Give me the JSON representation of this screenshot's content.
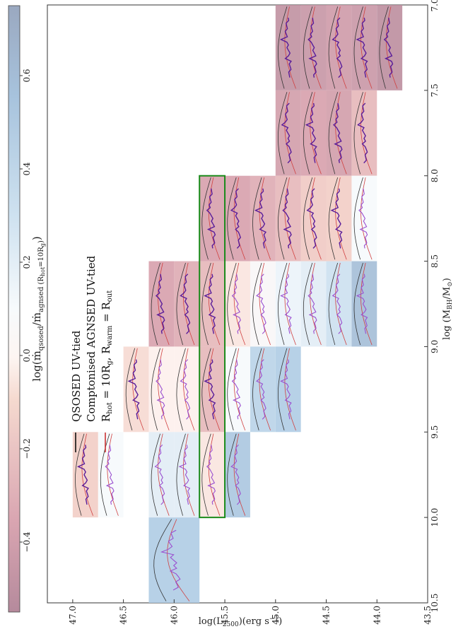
{
  "chart_data": {
    "type": "heatmap",
    "orientation": "rotated-90",
    "title": "",
    "xlabel": "log(M_BH/M_⊙)",
    "ylabel": "log(L_2500)(erg s^-1)",
    "colorbar_label": "log(ṁ_qsosed/ṁ_agnsed (R_hot=10R_g))",
    "xlim": [
      7.0,
      10.5
    ],
    "ylim": [
      43.5,
      47.25
    ],
    "clim": [
      -0.55,
      0.75
    ],
    "x_ticks": [
      "7.0",
      "7.5",
      "8.0",
      "8.5",
      "9.0",
      "9.5",
      "10.0",
      "10.5"
    ],
    "y_ticks": [
      "43.5",
      "44.0",
      "44.5",
      "45.0",
      "45.5",
      "46.0",
      "46.5",
      "47.0"
    ],
    "cbar_ticks": [
      "−0.4",
      "−0.2",
      "0.0",
      "0.2",
      "0.4",
      "0.6"
    ],
    "cbar_tick_values": [
      -0.4,
      -0.2,
      0.0,
      0.2,
      0.4,
      0.6
    ],
    "legend": [
      {
        "label": "QSOSED UV-tied",
        "color": "#111111"
      },
      {
        "label": "Comptonised AGNSED UV-tied",
        "color": "#111111"
      },
      {
        "label": "R_hot = 10R_g, R_warm = R_out",
        "color": "#cc3333"
      }
    ],
    "highlight": {
      "x_range": [
        8.0,
        10.0
      ],
      "y_range": [
        45.5,
        45.75
      ],
      "color": "#1a8a1a"
    },
    "bins": [
      {
        "mbh": [
          7.0,
          7.5
        ],
        "l": [
          43.75,
          44.0
        ],
        "v": -0.52
      },
      {
        "mbh": [
          7.0,
          7.5
        ],
        "l": [
          44.0,
          44.25
        ],
        "v": -0.46
      },
      {
        "mbh": [
          7.0,
          7.5
        ],
        "l": [
          44.25,
          44.5
        ],
        "v": -0.44
      },
      {
        "mbh": [
          7.0,
          7.5
        ],
        "l": [
          44.5,
          44.75
        ],
        "v": -0.47
      },
      {
        "mbh": [
          7.0,
          7.5
        ],
        "l": [
          44.75,
          45.0
        ],
        "v": -0.5
      },
      {
        "mbh": [
          7.5,
          8.0
        ],
        "l": [
          44.0,
          44.25
        ],
        "v": -0.3
      },
      {
        "mbh": [
          7.5,
          8.0
        ],
        "l": [
          44.25,
          44.5
        ],
        "v": -0.42
      },
      {
        "mbh": [
          7.5,
          8.0
        ],
        "l": [
          44.5,
          44.75
        ],
        "v": -0.4
      },
      {
        "mbh": [
          7.5,
          8.0
        ],
        "l": [
          44.75,
          45.0
        ],
        "v": -0.42
      },
      {
        "mbh": [
          8.0,
          8.5
        ],
        "l": [
          44.0,
          44.25
        ],
        "v": 0.05
      },
      {
        "mbh": [
          8.0,
          8.5
        ],
        "l": [
          44.25,
          44.5
        ],
        "v": -0.2
      },
      {
        "mbh": [
          8.0,
          8.5
        ],
        "l": [
          44.5,
          44.75
        ],
        "v": -0.22
      },
      {
        "mbh": [
          8.0,
          8.5
        ],
        "l": [
          44.75,
          45.0
        ],
        "v": -0.3
      },
      {
        "mbh": [
          8.0,
          8.5
        ],
        "l": [
          45.0,
          45.25
        ],
        "v": -0.35
      },
      {
        "mbh": [
          8.0,
          8.5
        ],
        "l": [
          45.25,
          45.5
        ],
        "v": -0.4
      },
      {
        "mbh": [
          8.0,
          8.5
        ],
        "l": [
          45.5,
          45.75
        ],
        "v": -0.4
      },
      {
        "mbh": [
          8.5,
          9.0
        ],
        "l": [
          44.0,
          44.25
        ],
        "v": 0.55
      },
      {
        "mbh": [
          8.5,
          9.0
        ],
        "l": [
          44.25,
          44.5
        ],
        "v": 0.25
      },
      {
        "mbh": [
          8.5,
          9.0
        ],
        "l": [
          44.5,
          44.75
        ],
        "v": 0.15
      },
      {
        "mbh": [
          8.5,
          9.0
        ],
        "l": [
          44.75,
          45.0
        ],
        "v": 0.1
      },
      {
        "mbh": [
          8.5,
          9.0
        ],
        "l": [
          45.0,
          45.25
        ],
        "v": 0.02
      },
      {
        "mbh": [
          8.5,
          9.0
        ],
        "l": [
          45.25,
          45.5
        ],
        "v": -0.1
      },
      {
        "mbh": [
          8.5,
          9.0
        ],
        "l": [
          45.5,
          45.75
        ],
        "v": -0.3
      },
      {
        "mbh": [
          8.5,
          9.0
        ],
        "l": [
          45.75,
          46.0
        ],
        "v": -0.35
      },
      {
        "mbh": [
          8.5,
          9.0
        ],
        "l": [
          46.0,
          46.25
        ],
        "v": -0.4
      },
      {
        "mbh": [
          9.0,
          9.5
        ],
        "l": [
          44.75,
          45.0
        ],
        "v": 0.4
      },
      {
        "mbh": [
          9.0,
          9.5
        ],
        "l": [
          45.0,
          45.25
        ],
        "v": 0.35
      },
      {
        "mbh": [
          9.0,
          9.5
        ],
        "l": [
          45.25,
          45.5
        ],
        "v": 0.05
      },
      {
        "mbh": [
          9.0,
          9.5
        ],
        "l": [
          45.5,
          45.75
        ],
        "v": -0.3
      },
      {
        "mbh": [
          9.0,
          9.5
        ],
        "l": [
          45.75,
          46.0
        ],
        "v": -0.05
      },
      {
        "mbh": [
          9.0,
          9.5
        ],
        "l": [
          46.0,
          46.25
        ],
        "v": -0.05
      },
      {
        "mbh": [
          9.0,
          9.5
        ],
        "l": [
          46.25,
          46.5
        ],
        "v": -0.15
      },
      {
        "mbh": [
          9.5,
          10.0
        ],
        "l": [
          45.25,
          45.5
        ],
        "v": 0.45
      },
      {
        "mbh": [
          9.5,
          10.0
        ],
        "l": [
          45.5,
          45.75
        ],
        "v": -0.1
      },
      {
        "mbh": [
          9.5,
          10.0
        ],
        "l": [
          45.75,
          46.0
        ],
        "v": 0.15
      },
      {
        "mbh": [
          9.5,
          10.0
        ],
        "l": [
          46.0,
          46.25
        ],
        "v": 0.15
      },
      {
        "mbh": [
          9.5,
          10.0
        ],
        "l": [
          46.5,
          46.75
        ],
        "v": 0.05
      },
      {
        "mbh": [
          9.5,
          10.0
        ],
        "l": [
          46.75,
          47.0
        ],
        "v": -0.2
      },
      {
        "mbh": [
          10.0,
          10.5
        ],
        "l": [
          45.75,
          46.25
        ],
        "v": 0.4
      }
    ]
  }
}
